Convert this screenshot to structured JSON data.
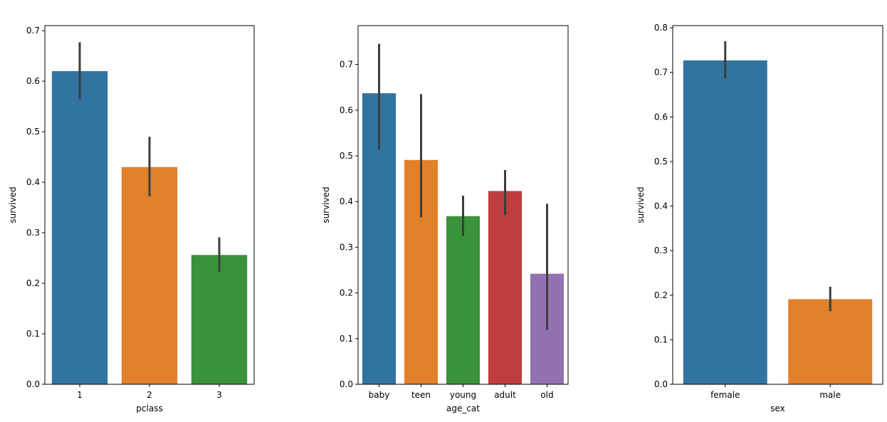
{
  "chart_data": [
    {
      "type": "bar",
      "xlabel": "pclass",
      "ylabel": "survived",
      "categories": [
        "1",
        "2",
        "3"
      ],
      "values": [
        0.62,
        0.43,
        0.256
      ],
      "error_bars": [
        [
          0.564,
          0.677
        ],
        [
          0.372,
          0.49
        ],
        [
          0.223,
          0.291
        ]
      ],
      "colors": [
        "#3274a1",
        "#e1812c",
        "#3a923a"
      ],
      "ylim": [
        0,
        0.71
      ],
      "yticks": [
        0.0,
        0.1,
        0.2,
        0.3,
        0.4,
        0.5,
        0.6,
        0.7
      ],
      "ytick_labels": [
        "0.0",
        "0.1",
        "0.2",
        "0.3",
        "0.4",
        "0.5",
        "0.6",
        "0.7"
      ],
      "grid": false,
      "errorbar_color": "#3d3d3d"
    },
    {
      "type": "bar",
      "xlabel": "age_cat",
      "ylabel": "survived",
      "categories": [
        "baby",
        "teen",
        "young",
        "adult",
        "old"
      ],
      "values": [
        0.637,
        0.491,
        0.368,
        0.423,
        0.242
      ],
      "error_bars": [
        [
          0.513,
          0.745
        ],
        [
          0.365,
          0.635
        ],
        [
          0.324,
          0.413
        ],
        [
          0.37,
          0.469
        ],
        [
          0.119,
          0.395
        ]
      ],
      "colors": [
        "#3274a1",
        "#e1812c",
        "#3a923a",
        "#c03d3e",
        "#9372b2"
      ],
      "ylim": [
        0,
        0.785
      ],
      "yticks": [
        0.0,
        0.1,
        0.2,
        0.3,
        0.4,
        0.5,
        0.6,
        0.7
      ],
      "ytick_labels": [
        "0.0",
        "0.1",
        "0.2",
        "0.3",
        "0.4",
        "0.5",
        "0.6",
        "0.7"
      ],
      "grid": false,
      "errorbar_color": "#3d3d3d"
    },
    {
      "type": "bar",
      "xlabel": "sex",
      "ylabel": "survived",
      "categories": [
        "female",
        "male"
      ],
      "values": [
        0.727,
        0.191
      ],
      "error_bars": [
        [
          0.686,
          0.77
        ],
        [
          0.164,
          0.219
        ]
      ],
      "colors": [
        "#3274a1",
        "#e1812c"
      ],
      "ylim": [
        0,
        0.805
      ],
      "yticks": [
        0.0,
        0.1,
        0.2,
        0.3,
        0.4,
        0.5,
        0.6,
        0.7,
        0.8
      ],
      "ytick_labels": [
        "0.0",
        "0.1",
        "0.2",
        "0.3",
        "0.4",
        "0.5",
        "0.6",
        "0.7",
        "0.8"
      ],
      "grid": false,
      "errorbar_color": "#3d3d3d"
    }
  ]
}
